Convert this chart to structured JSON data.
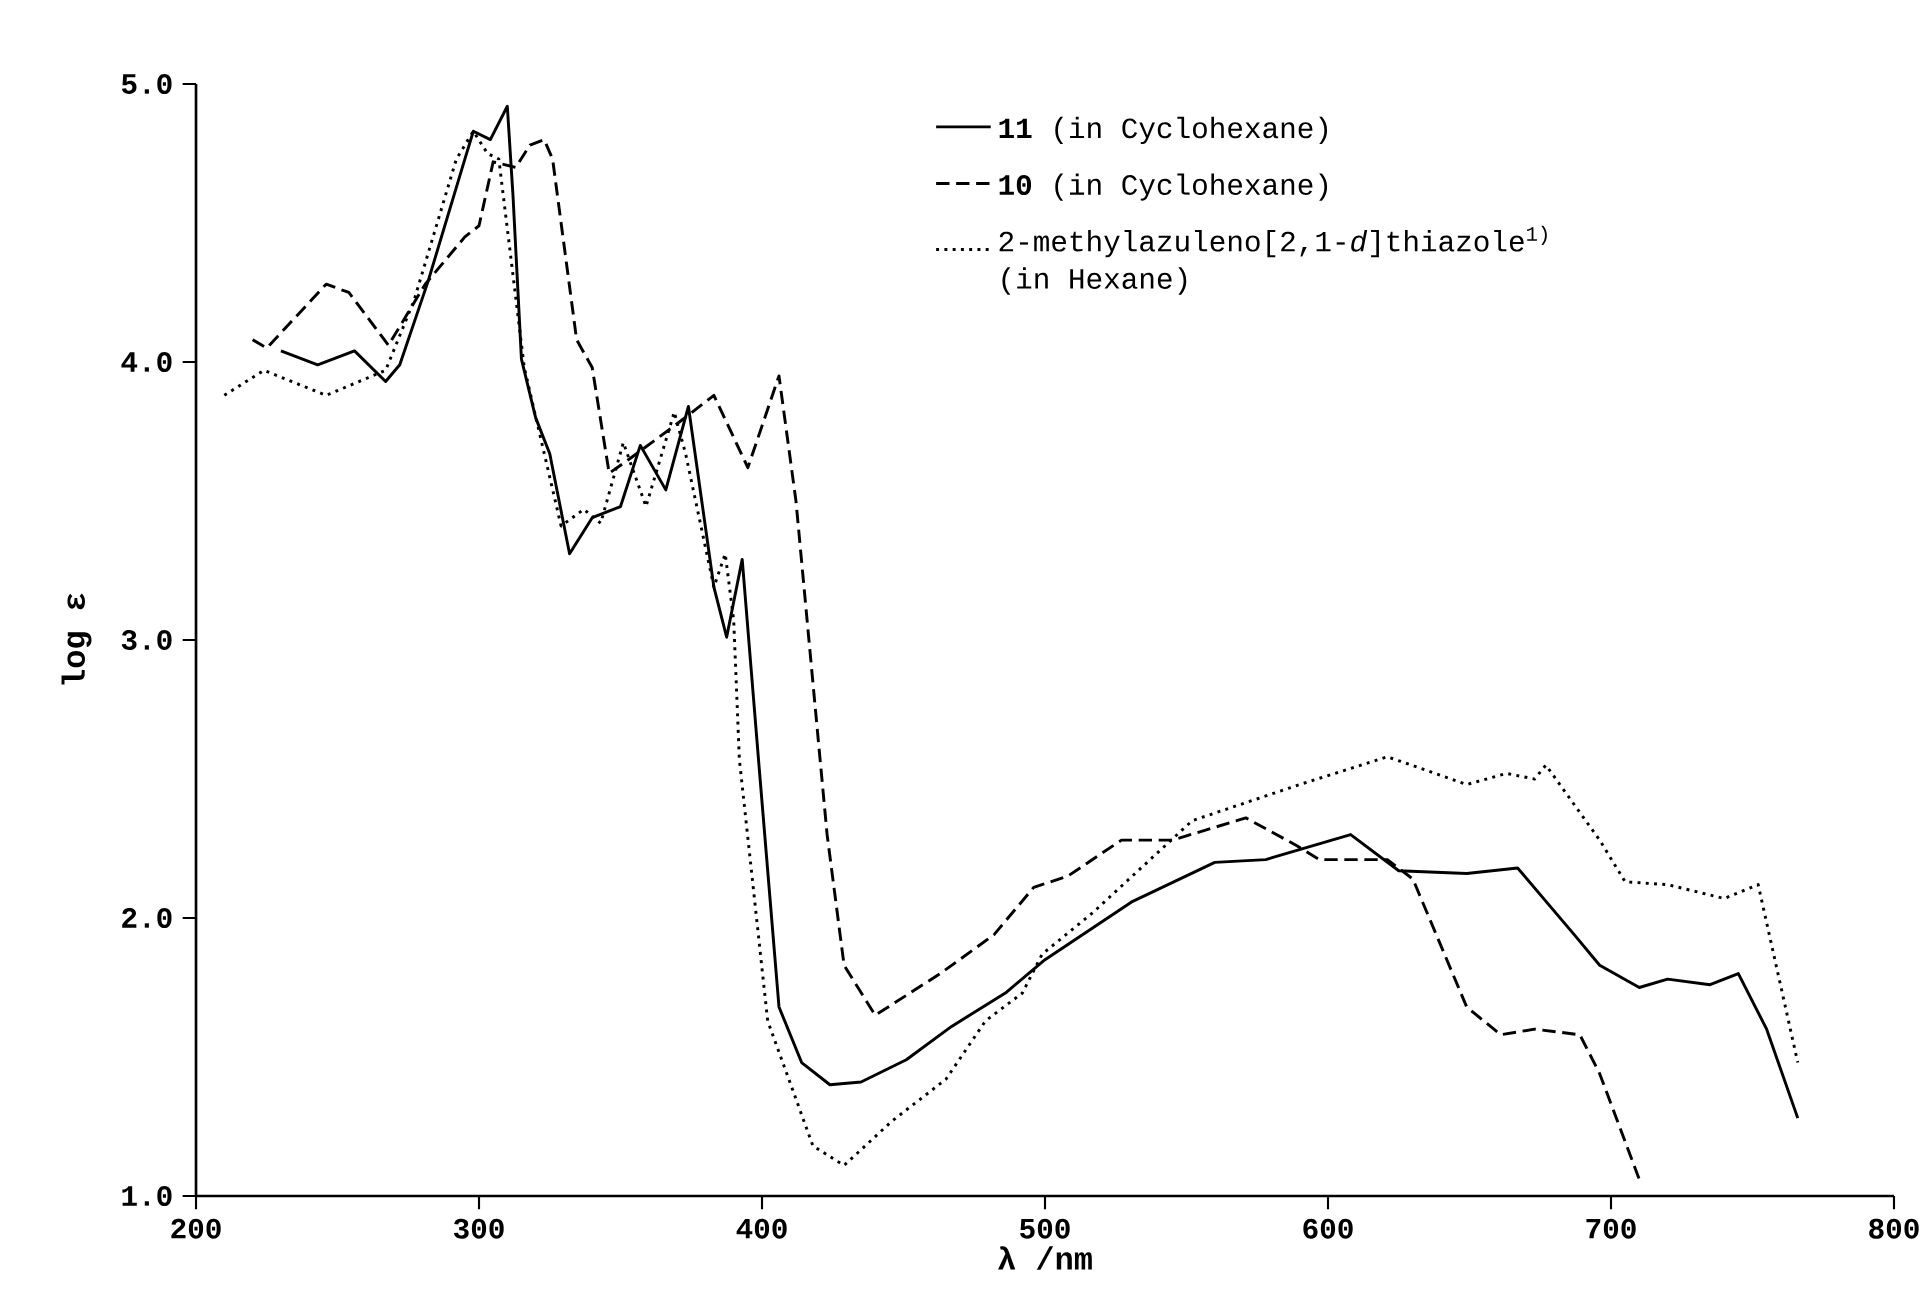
{
  "chart_data": {
    "type": "line",
    "xlabel": "λ /nm",
    "ylabel": "log ε",
    "xlim": [
      200,
      800
    ],
    "xticks": [
      200,
      300,
      400,
      500,
      600,
      700,
      800
    ],
    "ylim": [
      1,
      5
    ],
    "yticks": [
      {
        "value": 1,
        "label": "1.0"
      },
      {
        "value": 2,
        "label": "2.0"
      },
      {
        "value": 3,
        "label": "3.0"
      },
      {
        "value": 4,
        "label": "4.0"
      },
      {
        "value": 5,
        "label": "5.0"
      }
    ],
    "legend": "top right",
    "grid": false,
    "series": [
      {
        "name": "**11** (in Cyclohexane)",
        "color": "#000000",
        "line_style": "solid",
        "x": [
          230,
          243,
          256,
          267,
          272,
          282,
          295,
          298,
          304,
          310,
          312,
          315,
          320,
          325,
          332,
          340,
          350,
          357,
          366,
          374,
          383,
          387.5,
          393,
          399,
          406,
          414,
          424,
          435,
          451,
          467,
          486,
          500,
          531,
          560,
          578,
          608,
          625,
          649,
          667,
          687,
          696,
          710,
          720,
          735,
          745,
          755,
          766
        ],
        "values": [
          4.04,
          3.99,
          4.04,
          3.93,
          3.99,
          4.29,
          4.73,
          4.83,
          4.8,
          4.92,
          4.6,
          4.01,
          3.8,
          3.67,
          3.31,
          3.44,
          3.48,
          3.7,
          3.54,
          3.84,
          3.19,
          3.01,
          3.29,
          2.54,
          1.68,
          1.48,
          1.4,
          1.41,
          1.49,
          1.61,
          1.73,
          1.85,
          2.06,
          2.2,
          2.21,
          2.3,
          2.17,
          2.16,
          2.18,
          1.94,
          1.83,
          1.75,
          1.78,
          1.76,
          1.8,
          1.6,
          1.28
        ]
      },
      {
        "name": "**10** (in Cyclohexane)",
        "color": "#000000",
        "line_style": "dashed",
        "x": [
          220,
          225,
          246,
          254,
          268,
          281,
          295,
          300,
          305,
          313,
          318,
          323,
          326,
          334.5,
          340,
          346,
          353,
          369,
          383,
          395,
          406,
          412,
          423,
          429,
          440,
          463,
          482,
          496,
          508,
          527,
          545,
          571,
          589,
          597,
          621,
          630,
          649,
          661,
          673,
          689,
          696,
          703,
          710
        ],
        "values": [
          4.08,
          4.05,
          4.28,
          4.25,
          4.06,
          4.28,
          4.45,
          4.49,
          4.72,
          4.7,
          4.78,
          4.8,
          4.73,
          4.08,
          3.98,
          3.6,
          3.65,
          3.77,
          3.88,
          3.62,
          3.95,
          3.5,
          2.3,
          1.83,
          1.65,
          1.8,
          1.94,
          2.11,
          2.15,
          2.28,
          2.28,
          2.36,
          2.26,
          2.21,
          2.21,
          2.14,
          1.68,
          1.58,
          1.6,
          1.58,
          1.44,
          1.25,
          1.06
        ]
      },
      {
        "name": "2-methylazuleno[2,1-*d*]thiazole$^{1)}$ (in Hexane)",
        "color": "#000000",
        "line_style": "dotted",
        "x": [
          210,
          224,
          246,
          267,
          277,
          292,
          298,
          303,
          307,
          316,
          329,
          337,
          343,
          351,
          359,
          369,
          373,
          383,
          387,
          390,
          392,
          402,
          418,
          429,
          446,
          465,
          479,
          492,
          499,
          517,
          552,
          590,
          621,
          649,
          663,
          673,
          677,
          696,
          705,
          720,
          740,
          752,
          766
        ],
        "values": [
          3.88,
          3.97,
          3.88,
          3.97,
          4.22,
          4.73,
          4.83,
          4.75,
          4.73,
          3.98,
          3.41,
          3.47,
          3.42,
          3.71,
          3.48,
          3.82,
          3.67,
          3.19,
          3.31,
          3.07,
          2.57,
          1.63,
          1.18,
          1.11,
          1.27,
          1.42,
          1.63,
          1.73,
          1.87,
          2.02,
          2.35,
          2.48,
          2.58,
          2.48,
          2.52,
          2.5,
          2.55,
          2.28,
          2.13,
          2.12,
          2.07,
          2.12,
          1.48
        ]
      }
    ]
  }
}
